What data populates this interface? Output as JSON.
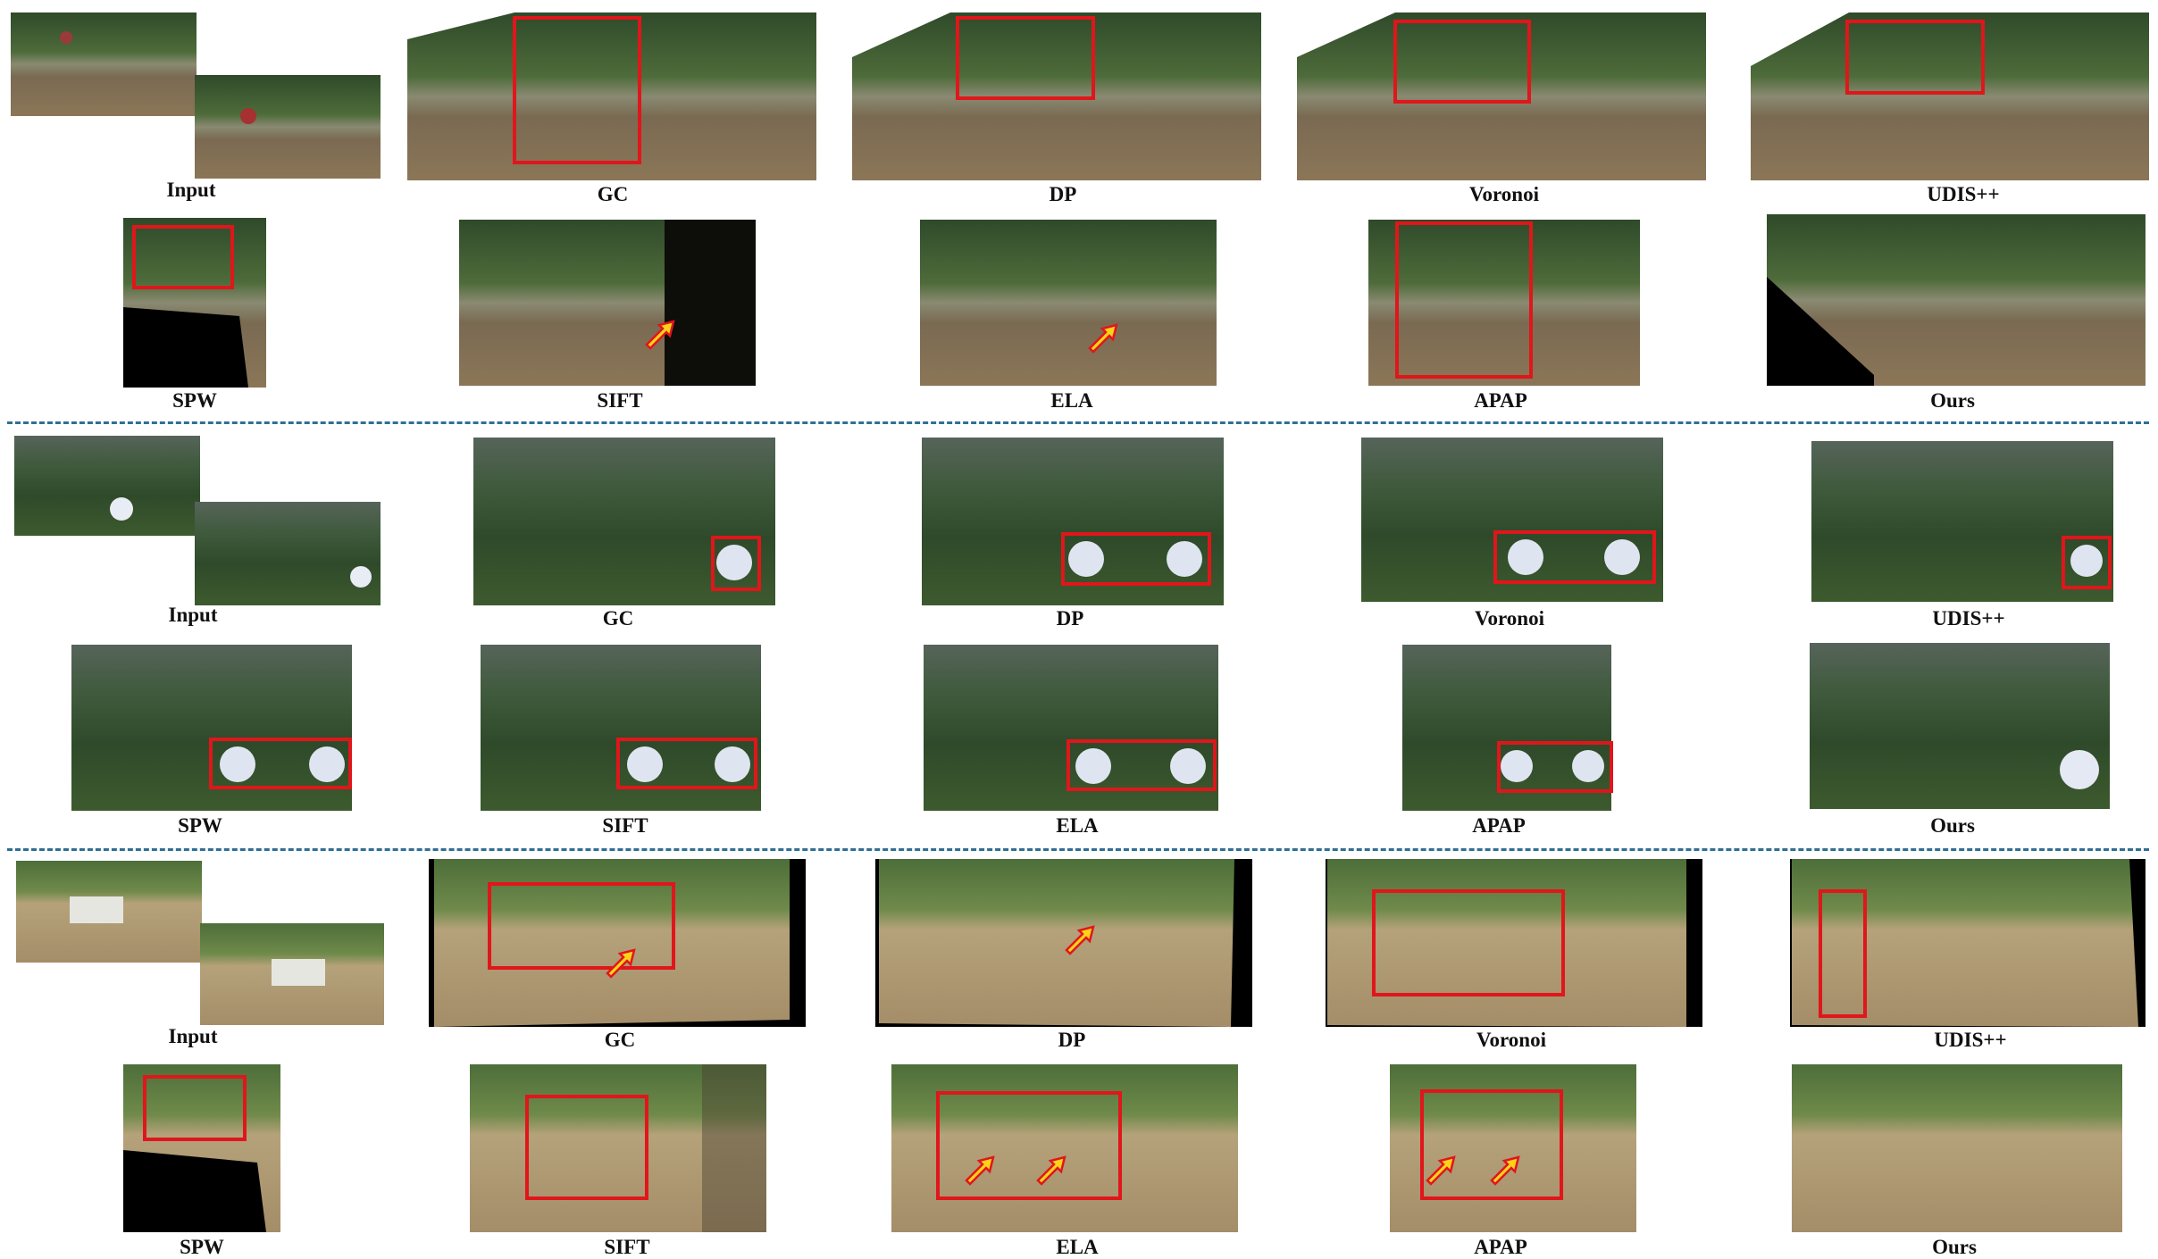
{
  "figure": {
    "block_motocross": {
      "row1_labels": [
        "Input",
        "GC",
        "DP",
        "Voronoi",
        "UDIS++"
      ],
      "row2_labels": [
        "SPW",
        "SIFT",
        "ELA",
        "APAP",
        "Ours"
      ]
    },
    "block_soccer": {
      "row1_labels": [
        "Input",
        "GC",
        "DP",
        "Voronoi",
        "UDIS++"
      ],
      "row2_labels": [
        "SPW",
        "SIFT",
        "ELA",
        "APAP",
        "Ours"
      ]
    },
    "block_horse": {
      "row1_labels": [
        "Input",
        "GC",
        "DP",
        "Voronoi",
        "UDIS++"
      ],
      "row2_labels": [
        "SPW",
        "SIFT",
        "ELA",
        "APAP",
        "Ours"
      ]
    }
  },
  "colors": {
    "highlight_box": "#e0161b",
    "arrow_fill": "#ffd21a",
    "arrow_stroke": "#e0161b",
    "divider": "#2f6f94"
  },
  "scene_icons": [
    "motocross-scene-icon",
    "soccer-ball-scene-icon",
    "horse-jump-scene-icon"
  ]
}
